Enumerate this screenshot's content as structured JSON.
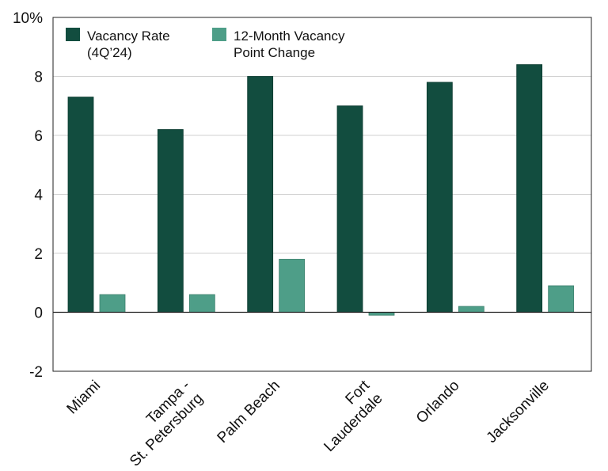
{
  "chart_data": {
    "type": "bar",
    "categories": [
      "Miami",
      "Tampa -\nSt. Petersburg",
      "Palm Beach",
      "Fort\nLauderdale",
      "Orlando",
      "Jacksonville"
    ],
    "series": [
      {
        "name": "Vacancy Rate\n(4Q’24)",
        "values": [
          7.3,
          6.2,
          8.0,
          7.0,
          7.8,
          8.4
        ],
        "color": "#124d3f"
      },
      {
        "name": "12-Month Vacancy\nPoint Change",
        "values": [
          0.6,
          0.6,
          1.8,
          -0.1,
          0.2,
          0.9
        ],
        "color": "#4e9e88"
      }
    ],
    "ylim": [
      -2,
      10
    ],
    "yticks": [
      -2,
      0,
      2,
      4,
      6,
      8,
      10
    ],
    "ytick_labels": [
      "-2",
      "0",
      "2",
      "4",
      "6",
      "8",
      "10%"
    ],
    "grid": true,
    "legend_position": "top-left",
    "title": "",
    "xlabel": "",
    "ylabel": ""
  }
}
